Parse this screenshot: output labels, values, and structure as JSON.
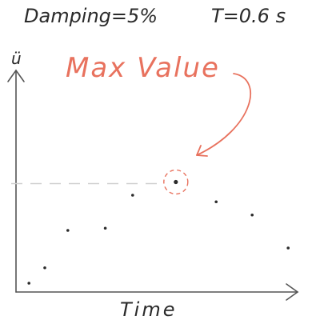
{
  "header": {
    "damping": "Damping=5%",
    "period": "T=0.6 s"
  },
  "colors": {
    "ink": "#2b2b2b",
    "accent": "#e8725e",
    "guide": "#cfcfcf"
  },
  "chart_data": {
    "type": "scatter",
    "title": "",
    "xlabel": "Time",
    "ylabel": "ü",
    "xlim": [
      0,
      10
    ],
    "ylim": [
      0,
      10
    ],
    "grid": false,
    "legend": "none",
    "series": [
      {
        "x": [
          0.45,
          1.0,
          1.8,
          3.1,
          4.05,
          5.55,
          6.95,
          8.2,
          9.45
        ],
        "y": [
          0.4,
          1.1,
          2.8,
          2.9,
          4.4,
          5.0,
          4.1,
          3.5,
          2.0
        ]
      }
    ],
    "annotation": {
      "label": "Max Value",
      "point_index": 5,
      "guide": "dashed horizontal line from y-axis to max point"
    }
  }
}
